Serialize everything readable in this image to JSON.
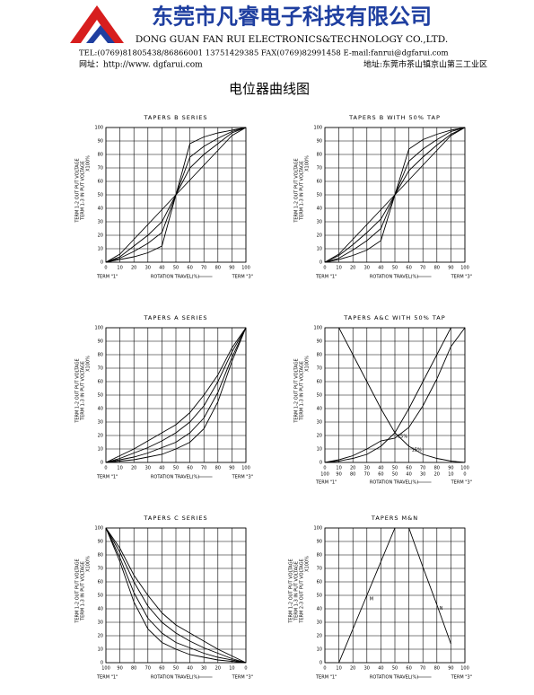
{
  "header": {
    "company_cn": "东莞市凡睿电子科技有限公司",
    "company_en": "DONG GUAN FAN RUI ELECTRONICS&TECHNOLOGY CO.,LTD.",
    "contact": "TEL:(0769)81805438/86866001 13751429385  FAX(0769)82991458    E-mail:fanrui@dgfarui.com",
    "website": "网址：http://www. dgfarui.com",
    "address": "地址:东莞市茶山镇京山第三工业区",
    "title": "电位器曲线图"
  },
  "chart_data": [
    {
      "type": "line",
      "title": "TAPERS B SERIES",
      "ylabel": [
        "TERM 1-2 OUT PUT VOLTAGE",
        "TERM 1-3 IN PUT VOLTAGE",
        "X100%"
      ],
      "xlabel": "ROTATION TRAVEL(%)",
      "term_left": "TERM \"1\"",
      "term_right": "TERM \"3\"",
      "x": [
        0,
        10,
        20,
        30,
        40,
        50,
        60,
        70,
        80,
        90,
        100
      ],
      "xlim": [
        0,
        100
      ],
      "ylim": [
        0,
        100
      ],
      "xticks": [
        0,
        10,
        20,
        30,
        40,
        50,
        60,
        70,
        80,
        90,
        100
      ],
      "yticks": [
        0,
        10,
        20,
        30,
        40,
        50,
        60,
        70,
        80,
        90,
        100
      ],
      "series": [
        {
          "values": [
            0,
            6,
            17,
            28,
            39,
            50,
            61,
            72,
            83,
            94,
            100
          ]
        },
        {
          "values": [
            0,
            4,
            12,
            20,
            30,
            50,
            70,
            80,
            88,
            96,
            100
          ]
        },
        {
          "values": [
            0,
            3,
            8,
            14,
            22,
            50,
            78,
            86,
            92,
            97,
            100
          ]
        },
        {
          "values": [
            0,
            2,
            4,
            7,
            12,
            50,
            88,
            93,
            96,
            98,
            100
          ]
        }
      ]
    },
    {
      "type": "line",
      "title": "TAPERS B WITH 50% TAP",
      "ylabel": [
        "TERM 1-2 OUT PUT VOLTAGE",
        "TERM 1-3 IN PUT VOLTAGE",
        "X100%"
      ],
      "xlabel": "ROTATION TRAVEL(%)",
      "term_left": "TERM \"1\"",
      "term_right": "TERM \"3\"",
      "x": [
        0,
        10,
        20,
        30,
        40,
        50,
        60,
        70,
        80,
        90,
        100
      ],
      "xlim": [
        0,
        100
      ],
      "ylim": [
        0,
        100
      ],
      "xticks": [
        0,
        10,
        20,
        30,
        40,
        50,
        60,
        70,
        80,
        90,
        100
      ],
      "yticks": [
        0,
        10,
        20,
        30,
        40,
        50,
        60,
        70,
        80,
        90,
        100
      ],
      "series": [
        {
          "values": [
            0,
            6,
            17,
            28,
            39,
            50,
            61,
            72,
            83,
            94,
            100
          ]
        },
        {
          "values": [
            0,
            5,
            13,
            22,
            32,
            50,
            68,
            78,
            87,
            95,
            100
          ]
        },
        {
          "values": [
            0,
            3,
            9,
            16,
            25,
            50,
            75,
            84,
            91,
            97,
            100
          ]
        },
        {
          "values": [
            0,
            2,
            5,
            9,
            16,
            50,
            84,
            91,
            95,
            98,
            100
          ]
        }
      ]
    },
    {
      "type": "line",
      "title": "TAPERS A SERIES",
      "ylabel": [
        "TERM 1-2 OUT PUT VOLTAGE",
        "TERM 1-3 IN PUT VOLTAGE",
        "X100%"
      ],
      "xlabel": "ROTATION TRAVEL(%)",
      "term_left": "TERM \"1\"",
      "term_right": "TERM \"3\"",
      "x": [
        0,
        10,
        20,
        30,
        40,
        50,
        60,
        70,
        80,
        90,
        100
      ],
      "xlim": [
        0,
        100
      ],
      "ylim": [
        0,
        100
      ],
      "xticks": [
        0,
        10,
        20,
        30,
        40,
        50,
        60,
        70,
        80,
        90,
        100
      ],
      "yticks": [
        0,
        10,
        20,
        30,
        40,
        50,
        60,
        70,
        80,
        90,
        100
      ],
      "series": [
        {
          "values": [
            0,
            1,
            2,
            4,
            6,
            10,
            15,
            25,
            45,
            75,
            100
          ]
        },
        {
          "values": [
            0,
            2,
            4,
            7,
            11,
            15,
            22,
            33,
            52,
            78,
            100
          ]
        },
        {
          "values": [
            0,
            3,
            7,
            11,
            16,
            22,
            30,
            42,
            60,
            82,
            100
          ]
        },
        {
          "values": [
            0,
            5,
            10,
            16,
            22,
            28,
            37,
            50,
            65,
            85,
            100
          ]
        }
      ]
    },
    {
      "type": "line",
      "title": "TAPERS A&C WITH 50% TAP",
      "ylabel": [
        "TERM 1-2 OUT PUT VOLTAGE",
        "TERM 1-3 IN PUT VOLTAGE",
        "X100%"
      ],
      "xlabel": "ROTATION TRAVEL(%)",
      "term_left": "TERM \"1\"",
      "term_right": "TERM \"3\"",
      "x": [
        0,
        10,
        20,
        30,
        40,
        50,
        60,
        70,
        80,
        90,
        100
      ],
      "xlim": [
        0,
        100
      ],
      "ylim": [
        0,
        100
      ],
      "xticks": [
        0,
        10,
        20,
        30,
        40,
        50,
        60,
        70,
        80,
        90,
        100
      ],
      "xticks2": [
        {
          "value": 0,
          "label": "100"
        },
        {
          "value": 10,
          "label": "90"
        },
        {
          "value": 20,
          "label": "80"
        },
        {
          "value": 30,
          "label": "70"
        },
        {
          "value": 40,
          "label": "60"
        },
        {
          "value": 50,
          "label": "50"
        },
        {
          "value": 60,
          "label": "40"
        },
        {
          "value": 70,
          "label": "30"
        },
        {
          "value": 80,
          "label": "20"
        },
        {
          "value": 90,
          "label": "10"
        },
        {
          "value": 100,
          "label": "0"
        }
      ],
      "yticks": [
        0,
        10,
        20,
        30,
        40,
        50,
        60,
        70,
        80,
        90,
        100
      ],
      "series": [
        {
          "name": "15%",
          "values": [
            null,
            100,
            80,
            60,
            40,
            22,
            12,
            6,
            3,
            1,
            0
          ]
        },
        {
          "name": "15%",
          "values": [
            0,
            1,
            3,
            6,
            12,
            22,
            40,
            60,
            80,
            100,
            null
          ]
        },
        {
          "values": [
            0,
            2,
            5,
            10,
            16,
            18,
            26,
            42,
            62,
            86,
            100
          ]
        }
      ]
    },
    {
      "type": "line",
      "title": "TAPERS C SERIES",
      "ylabel": [
        "TERM 1-2 OUT PUT VOLTAGE",
        "TERM 1-3 IN PUT VOLTAGE",
        "X100%"
      ],
      "xlabel": "ROTATION TRAVEL(%)",
      "term_left": "TERM \"1\"",
      "term_right": "TERM \"3\"",
      "x": [
        0,
        10,
        20,
        30,
        40,
        50,
        60,
        70,
        80,
        90,
        100
      ],
      "xlim": [
        0,
        100
      ],
      "ylim": [
        0,
        100
      ],
      "xticks": [
        {
          "value": 0,
          "label": "100"
        },
        {
          "value": 10,
          "label": "90"
        },
        {
          "value": 20,
          "label": "80"
        },
        {
          "value": 30,
          "label": "70"
        },
        {
          "value": 40,
          "label": "60"
        },
        {
          "value": 50,
          "label": "50"
        },
        {
          "value": 60,
          "label": "40"
        },
        {
          "value": 70,
          "label": "30"
        },
        {
          "value": 80,
          "label": "20"
        },
        {
          "value": 90,
          "label": "10"
        },
        {
          "value": 100,
          "label": "0"
        }
      ],
      "yticks": [
        0,
        10,
        20,
        30,
        40,
        50,
        60,
        70,
        80,
        90,
        100
      ],
      "series": [
        {
          "values": [
            100,
            75,
            45,
            25,
            15,
            10,
            6,
            4,
            2,
            1,
            0
          ]
        },
        {
          "values": [
            100,
            78,
            52,
            33,
            22,
            15,
            11,
            7,
            4,
            2,
            0
          ]
        },
        {
          "values": [
            100,
            82,
            60,
            42,
            30,
            22,
            16,
            11,
            7,
            3,
            0
          ]
        },
        {
          "values": [
            100,
            85,
            65,
            50,
            37,
            28,
            22,
            16,
            10,
            5,
            0
          ]
        }
      ]
    },
    {
      "type": "line",
      "title": "TAPERS M&N",
      "ylabel": [
        "TERM 1-2 OUT PUT VOLTAGE",
        "TERM 1-3 IN PUT VOLTAGE",
        "TERM 2-3 OUT PUT VOLTAGE",
        "X100%"
      ],
      "xlabel": "ROTATION TRAVEL(%)",
      "term_left": "TERM \"1\"",
      "term_right": "TERM \"3\"",
      "x": [
        0,
        10,
        20,
        30,
        40,
        50,
        60,
        70,
        80,
        90,
        100
      ],
      "xlim": [
        0,
        100
      ],
      "ylim": [
        0,
        100
      ],
      "xticks": [
        0,
        10,
        20,
        30,
        40,
        50,
        60,
        70,
        80,
        90,
        100
      ],
      "yticks": [
        0,
        10,
        20,
        30,
        40,
        50,
        60,
        70,
        80,
        90,
        100
      ],
      "series": [
        {
          "name": "M",
          "values": [
            null,
            0,
            25,
            50,
            75,
            100,
            null,
            null,
            null,
            null,
            null
          ]
        },
        {
          "name": "N",
          "values": [
            null,
            null,
            null,
            null,
            null,
            null,
            100,
            71,
            43,
            14,
            null
          ]
        }
      ]
    }
  ]
}
